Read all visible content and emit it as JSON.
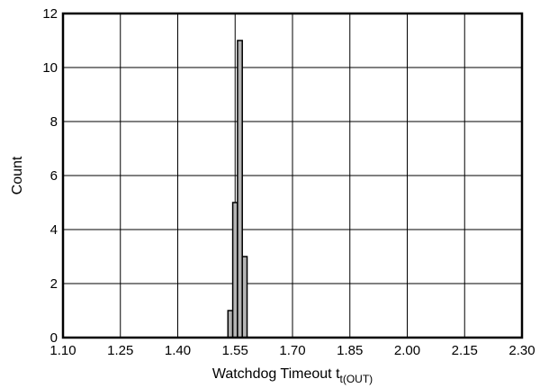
{
  "chart_data": {
    "type": "bar",
    "xlabel_main": "Watchdog Timeout t",
    "xlabel_sub": "t(OUT)",
    "ylabel": "Count",
    "xlim": [
      1.1,
      2.3
    ],
    "ylim": [
      0,
      12
    ],
    "x_ticks": [
      "1.10",
      "1.25",
      "1.40",
      "1.55",
      "1.70",
      "1.85",
      "2.00",
      "2.15",
      "2.30"
    ],
    "y_ticks": [
      "0",
      "2",
      "4",
      "6",
      "8",
      "10",
      "12"
    ],
    "x_tick_values": [
      1.1,
      1.25,
      1.4,
      1.55,
      1.7,
      1.85,
      2.0,
      2.15,
      2.3
    ],
    "y_tick_values": [
      0,
      2,
      4,
      6,
      8,
      10,
      12
    ],
    "bin_width": 0.0125,
    "bins": [
      {
        "x": 1.5375,
        "count": 1
      },
      {
        "x": 1.55,
        "count": 5
      },
      {
        "x": 1.5625,
        "count": 11
      },
      {
        "x": 1.575,
        "count": 3
      }
    ],
    "grid": true,
    "legend": "none"
  }
}
